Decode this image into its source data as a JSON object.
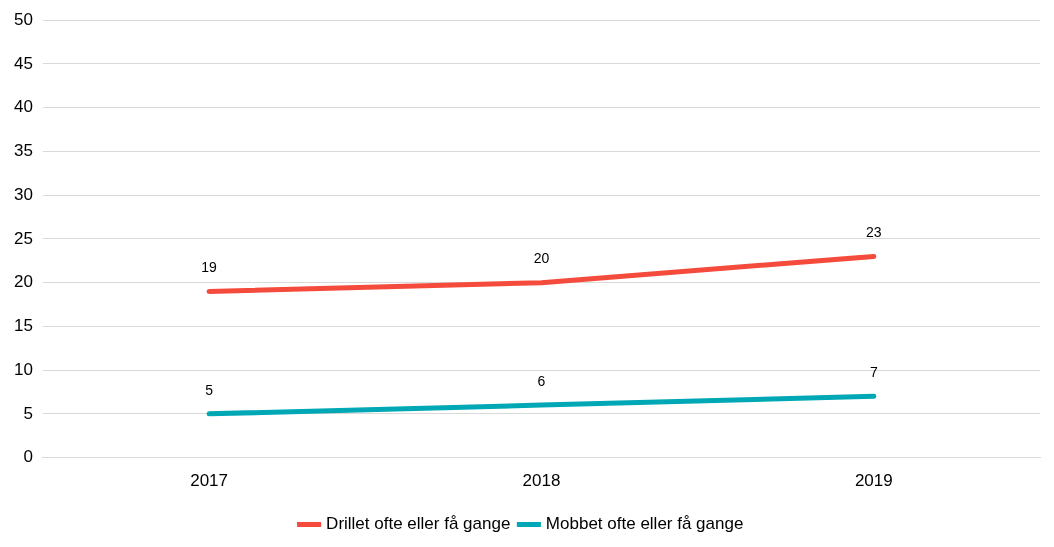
{
  "chart_data": {
    "type": "line",
    "categories": [
      "2017",
      "2018",
      "2019"
    ],
    "series": [
      {
        "name": "Drillet ofte eller få gange",
        "color": "#f54b3c",
        "values": [
          19,
          20,
          23
        ]
      },
      {
        "name": "Mobbet ofte eller få gange",
        "color": "#00a8b5",
        "values": [
          5,
          6,
          7
        ]
      }
    ],
    "ylim": [
      0,
      50
    ],
    "yticks": [
      0,
      5,
      10,
      15,
      20,
      25,
      30,
      35,
      40,
      45,
      50
    ],
    "grid": "y",
    "legend": "bottom",
    "data_labels": true,
    "marker": "none",
    "line_style": "solid"
  }
}
